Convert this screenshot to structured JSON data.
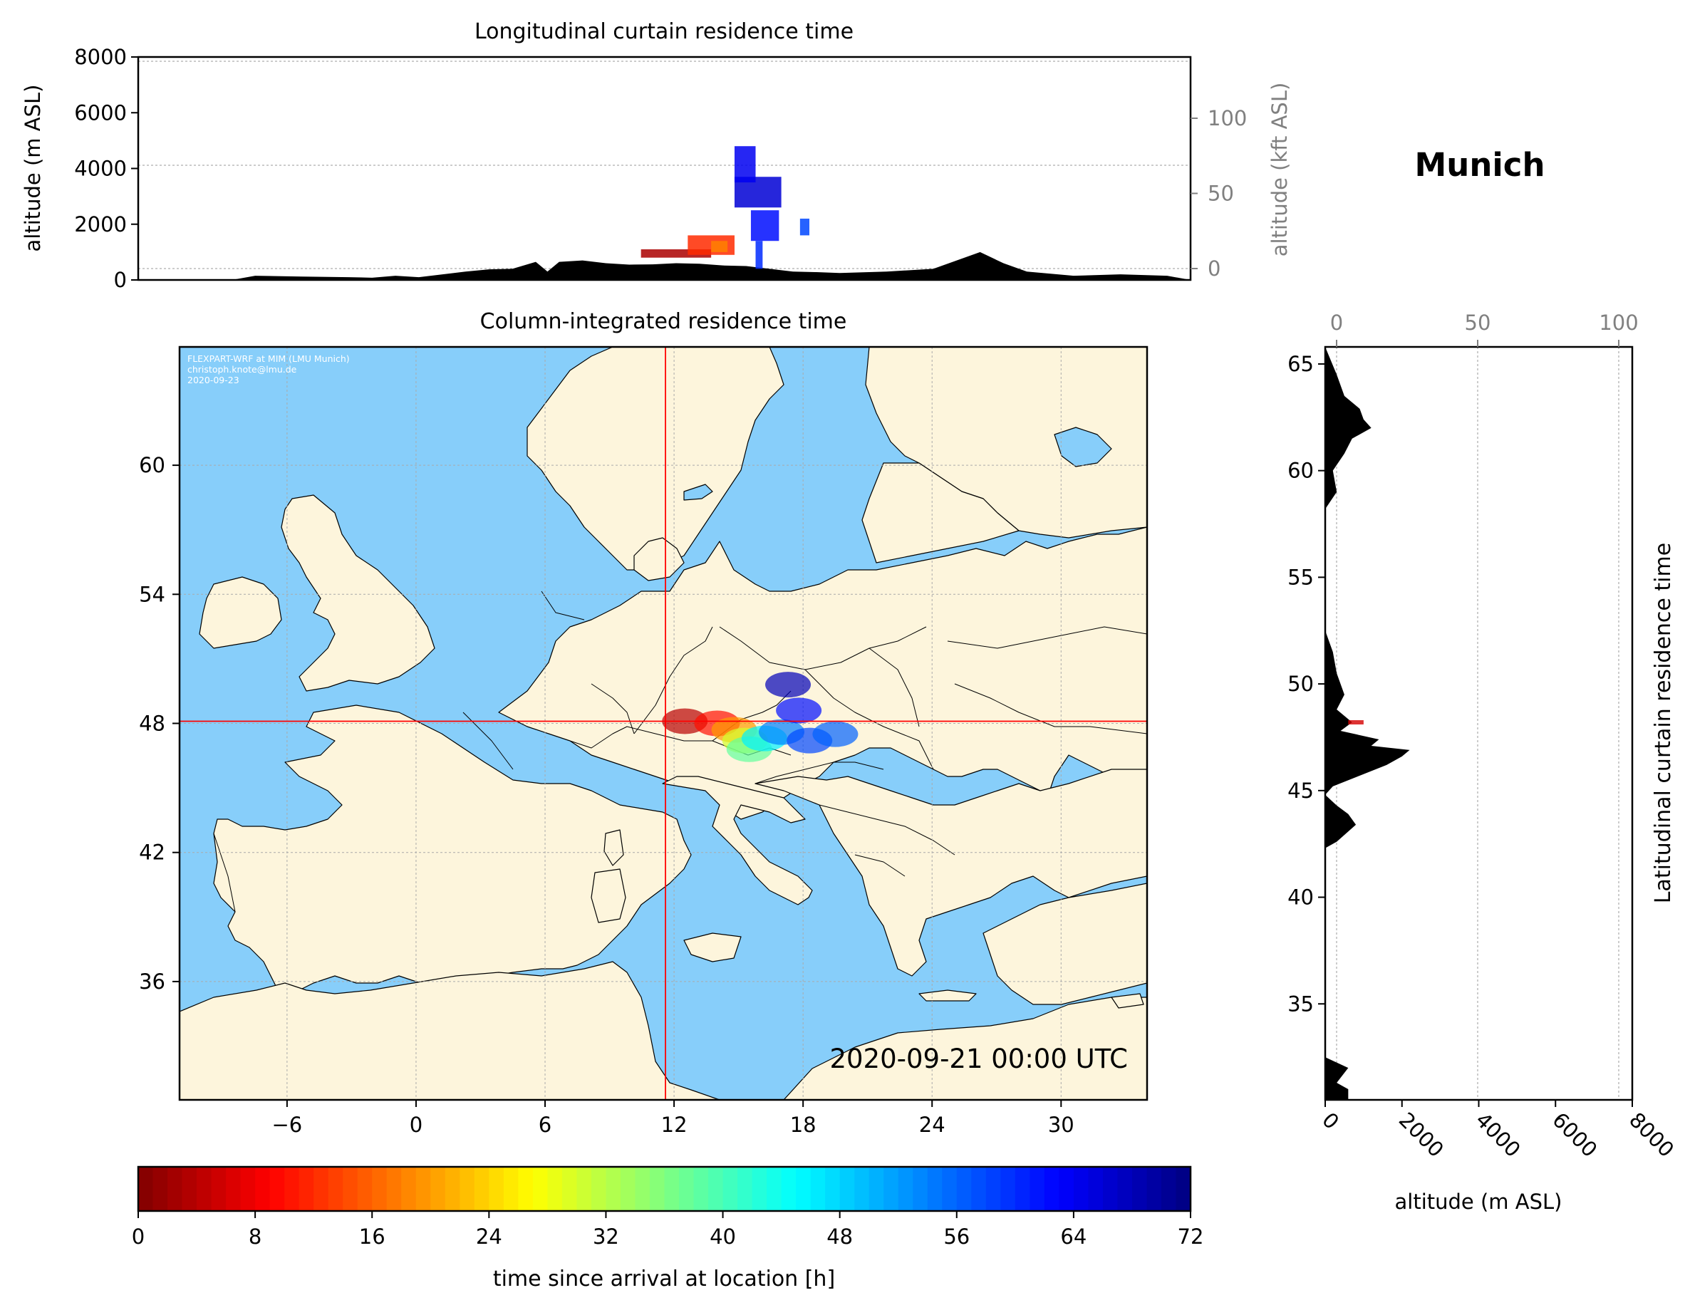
{
  "location": "Munich",
  "credit": [
    "FLEXPART-WRF at MIM (LMU Munich)",
    "christoph.knote@lmu.de",
    "2020-09-23"
  ],
  "timestamp": "2020-09-21 00:00 UTC",
  "colors": {
    "sea": "#87CEFA",
    "land": "#FDF5DC",
    "crosshair": "#ff0000",
    "terrain": "#000000"
  },
  "chart_data": [
    {
      "type": "area",
      "title": "Longitudinal curtain residence time",
      "ylabel": "altitude (m ASL)",
      "ylabel_right": "altitude (kft ASL)",
      "ylim": [
        0,
        8000
      ],
      "yticks": [
        "0",
        "2000",
        "4000",
        "6000",
        "8000"
      ],
      "yticks_right": [
        "0",
        "50",
        "100"
      ],
      "xlim": [
        -10,
        35
      ],
      "terrain": {
        "x": [
          -10,
          -6,
          -5,
          -3,
          -1,
          0,
          1,
          2,
          4,
          5,
          6,
          7,
          7.5,
          8,
          9,
          10,
          11,
          12,
          13,
          14,
          15,
          16,
          17,
          18,
          19,
          20,
          22,
          24,
          25,
          26,
          27,
          28,
          30,
          32,
          34,
          35
        ],
        "y": [
          0,
          0,
          150,
          120,
          100,
          80,
          150,
          100,
          300,
          380,
          400,
          650,
          300,
          650,
          700,
          600,
          550,
          560,
          600,
          580,
          520,
          500,
          400,
          300,
          280,
          250,
          300,
          400,
          700,
          1000,
          600,
          300,
          150,
          200,
          150,
          0
        ]
      },
      "plume": [
        {
          "x": [
            11.5,
            14.5
          ],
          "y": [
            800,
            1100
          ],
          "hours": 3
        },
        {
          "x": [
            13.5,
            15.5
          ],
          "y": [
            900,
            1600
          ],
          "hours": 12
        },
        {
          "x": [
            14.5,
            15.2
          ],
          "y": [
            1000,
            1400
          ],
          "hours": 18
        },
        {
          "x": [
            15.5,
            17.5
          ],
          "y": [
            2600,
            3700
          ],
          "hours": 66
        },
        {
          "x": [
            15.5,
            16.4
          ],
          "y": [
            3500,
            4800
          ],
          "hours": 64
        },
        {
          "x": [
            16.2,
            17.4
          ],
          "y": [
            1400,
            2500
          ],
          "hours": 62
        },
        {
          "x": [
            16.4,
            16.7
          ],
          "y": [
            400,
            1400
          ],
          "hours": 60
        },
        {
          "x": [
            18.3,
            18.7
          ],
          "y": [
            1600,
            2200
          ],
          "hours": 58
        }
      ]
    },
    {
      "type": "heatmap",
      "title": "Column-integrated residence time",
      "xticks": [
        "−6",
        "0",
        "6",
        "12",
        "18",
        "24",
        "30"
      ],
      "yticks": [
        "60",
        "54",
        "48",
        "42",
        "36"
      ],
      "xlim": [
        -11,
        34
      ],
      "ylim": [
        30.5,
        65.5
      ],
      "release_point": {
        "lon": 11.6,
        "lat": 48.1
      },
      "plume_footprint": [
        {
          "lon": 12.5,
          "lat": 48.1,
          "hours": 4
        },
        {
          "lon": 14.0,
          "lat": 48.0,
          "hours": 10
        },
        {
          "lon": 14.8,
          "lat": 47.7,
          "hours": 20
        },
        {
          "lon": 15.3,
          "lat": 47.2,
          "hours": 30
        },
        {
          "lon": 15.5,
          "lat": 46.8,
          "hours": 38
        },
        {
          "lon": 16.2,
          "lat": 47.3,
          "hours": 46
        },
        {
          "lon": 17.0,
          "lat": 47.6,
          "hours": 54
        },
        {
          "lon": 17.8,
          "lat": 48.6,
          "hours": 62
        },
        {
          "lon": 18.3,
          "lat": 47.2,
          "hours": 58
        },
        {
          "lon": 17.3,
          "lat": 49.8,
          "hours": 68
        },
        {
          "lon": 19.5,
          "lat": 47.5,
          "hours": 56
        }
      ]
    },
    {
      "type": "area",
      "title": "Latitudinal curtain residence time",
      "xlabel": "altitude (m ASL)",
      "xlim": [
        0,
        8000
      ],
      "xticks": [
        "0",
        "2000",
        "4000",
        "6000",
        "8000"
      ],
      "xticks_top": [
        "0",
        "50",
        "100"
      ],
      "yticks": [
        "65",
        "60",
        "55",
        "50",
        "45",
        "40",
        "35"
      ],
      "ylim": [
        30.5,
        65.8
      ],
      "terrain": {
        "lat": [
          30.5,
          31.0,
          31.3,
          32.0,
          32.5,
          42.3,
          42.6,
          43.4,
          43.9,
          44.3,
          44.8,
          45.2,
          45.7,
          46.2,
          46.6,
          46.9,
          47.1,
          47.4,
          47.8,
          48.2,
          48.8,
          49.5,
          50.5,
          51.5,
          52.5,
          53.0,
          58.2,
          59.0,
          60.0,
          60.8,
          61.5,
          62.0,
          62.4,
          62.9,
          63.5,
          64.5,
          65.8
        ],
        "alt": [
          600,
          600,
          300,
          600,
          0,
          0,
          300,
          800,
          600,
          300,
          0,
          200,
          900,
          1600,
          2000,
          2200,
          1200,
          1400,
          400,
          700,
          300,
          500,
          300,
          200,
          0,
          0,
          0,
          300,
          200,
          500,
          700,
          1200,
          1000,
          900,
          500,
          300,
          0
        ]
      },
      "plume": [
        {
          "lat": 48.2,
          "alt": [
            600,
            1000
          ],
          "hours": 6
        }
      ]
    },
    {
      "type": "colorbar",
      "xlabel": "time since arrival at location [h]",
      "xlim": [
        0,
        72
      ],
      "xticks": [
        "0",
        "8",
        "16",
        "24",
        "32",
        "40",
        "48",
        "56",
        "64",
        "72"
      ],
      "colormap": "jet_r"
    }
  ]
}
